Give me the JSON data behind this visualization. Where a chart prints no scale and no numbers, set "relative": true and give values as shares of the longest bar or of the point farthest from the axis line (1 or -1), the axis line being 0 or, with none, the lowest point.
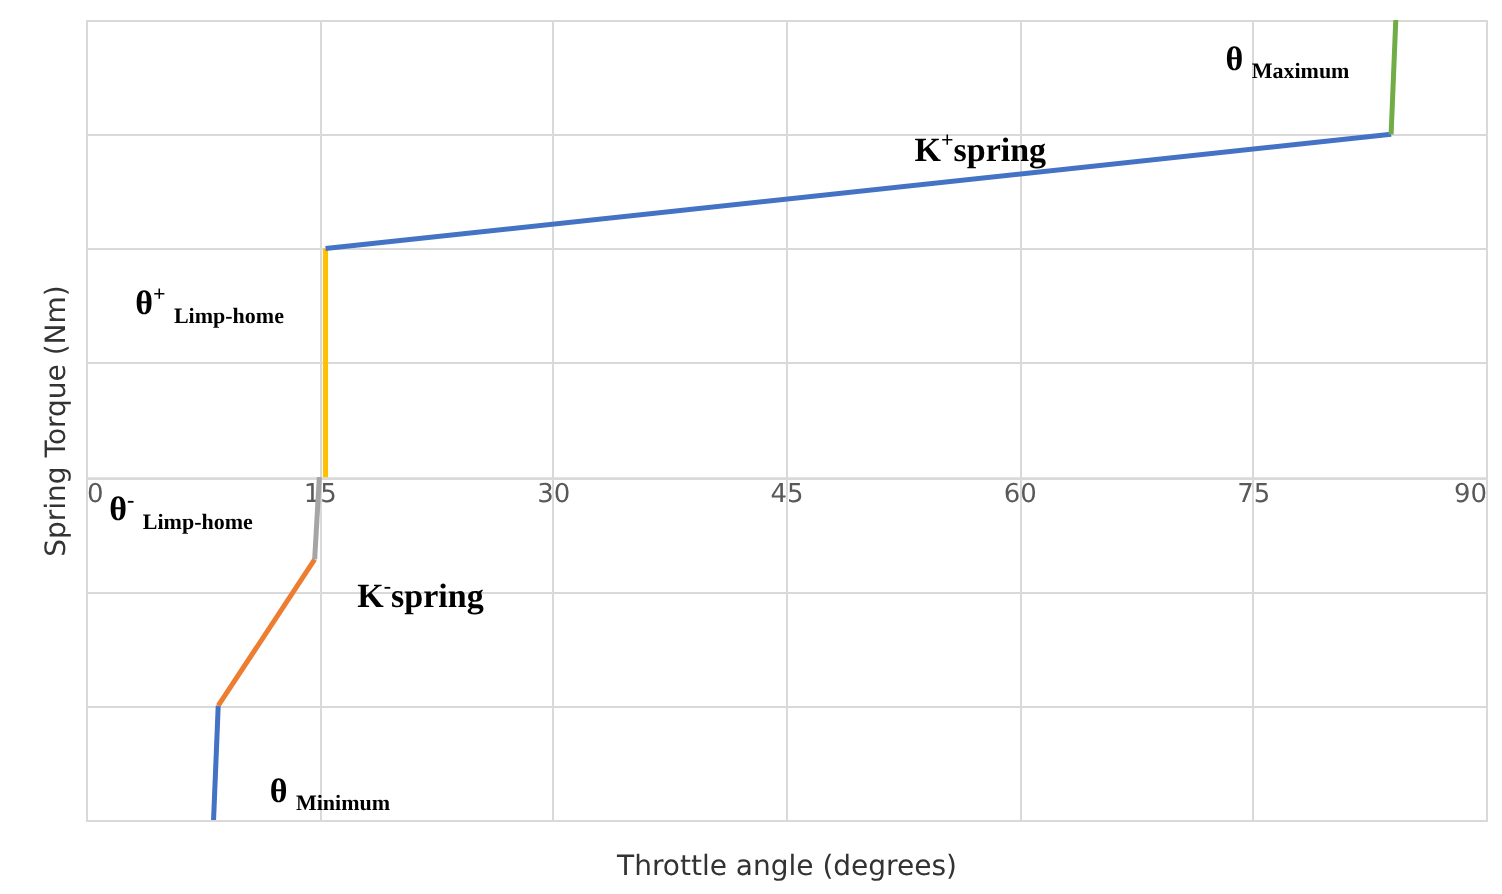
{
  "chart_data": {
    "type": "line",
    "relative": true,
    "xlabel": "Throttle angle (degrees)",
    "ylabel": "Spring Torque (Nm)",
    "xlim": [
      0,
      90
    ],
    "xticks": [
      0,
      15,
      30,
      45,
      60,
      75,
      90
    ],
    "grid": true,
    "series": [
      {
        "name": "θ $_{Minimum}$",
        "color": "#4472c4",
        "x": [
          8.2,
          8.5
        ],
        "values": [
          -0.75,
          -0.5
        ]
      },
      {
        "name": "K$^{-}$spring",
        "color": "#ed7d31",
        "x": [
          8.5,
          14.7
        ],
        "values": [
          -0.5,
          -0.18
        ]
      },
      {
        "name": "θ$^{-}$ $_{Limp-home}$",
        "color": "#a5a5a5",
        "x": [
          14.7,
          15
        ],
        "values": [
          -0.18,
          0
        ]
      },
      {
        "name": "θ$^{+}$ $_{Limp-home}$",
        "color": "#ffc000",
        "x": [
          15.4,
          15.4
        ],
        "values": [
          0,
          0.5
        ]
      },
      {
        "name": "K$^{+}$spring",
        "color": "#4472c4",
        "x": [
          15.4,
          83.9
        ],
        "values": [
          0.5,
          0.75
        ]
      },
      {
        "name": "θ $_{Maximum}$",
        "color": "#70ad47",
        "x": [
          83.9,
          84.2
        ],
        "values": [
          0.75,
          1
        ]
      }
    ]
  }
}
